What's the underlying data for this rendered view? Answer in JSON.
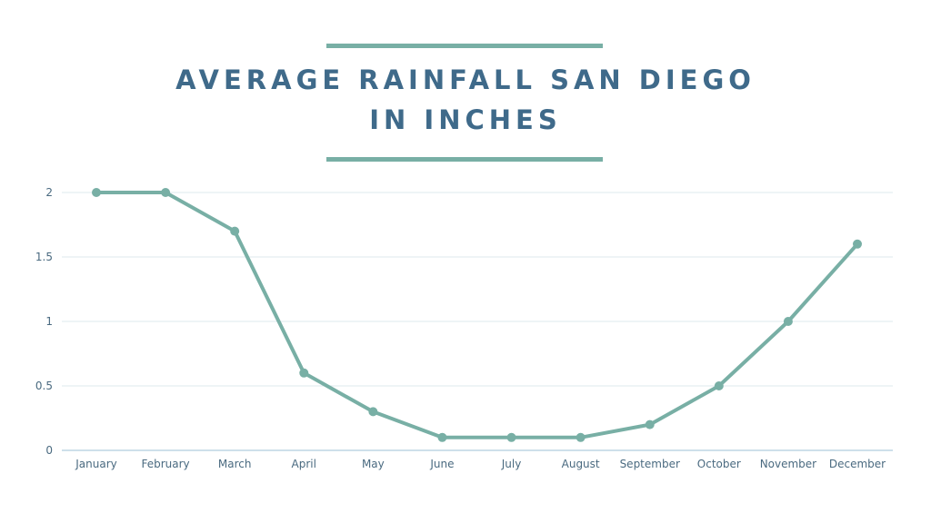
{
  "chart_data": {
    "type": "line",
    "title_line1": "AVERAGE RAINFALL SAN DIEGO",
    "title_line2": "IN INCHES",
    "xlabel": "",
    "ylabel": "",
    "categories": [
      "January",
      "February",
      "March",
      "April",
      "May",
      "June",
      "July",
      "August",
      "September",
      "October",
      "November",
      "December"
    ],
    "values": [
      2,
      2,
      1.7,
      0.6,
      0.3,
      0.1,
      0.1,
      0.1,
      0.2,
      0.5,
      1.0,
      1.6
    ],
    "ylim": [
      0,
      2
    ],
    "yticks": [
      0,
      0.5,
      1,
      1.5,
      2
    ],
    "ytick_labels": [
      "0",
      "0.5",
      "1",
      "1.5",
      "2"
    ],
    "grid": true,
    "legend": "none",
    "colors": {
      "line": "#78afa5",
      "title": "#3f6a8a",
      "grid": "#dde8ee",
      "axis": "#9cc0d4"
    }
  }
}
